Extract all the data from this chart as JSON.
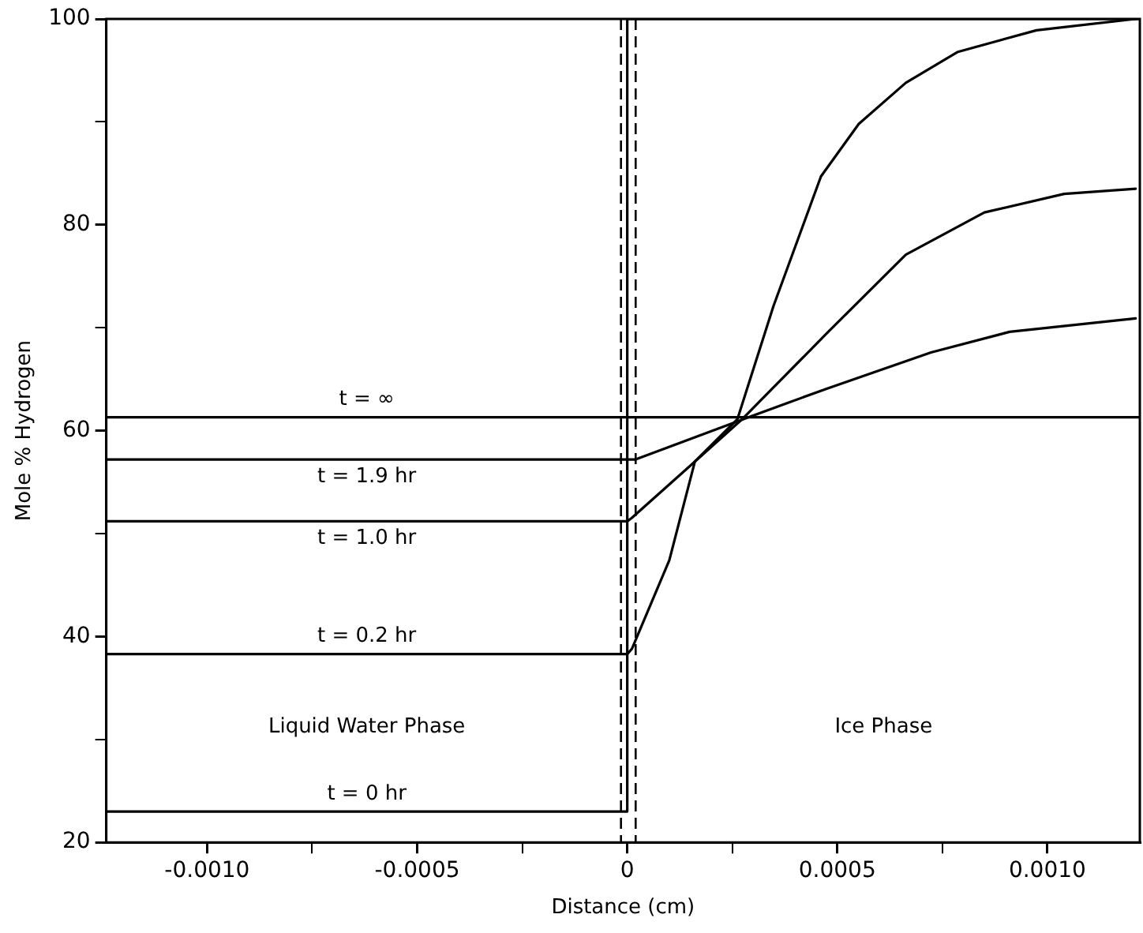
{
  "chart_data": {
    "type": "line",
    "xlabel": "Distance (cm)",
    "ylabel": "Mole % Hydrogen",
    "xlim": [
      -0.00124,
      0.00122
    ],
    "ylim": [
      20,
      100
    ],
    "xticks": [
      {
        "value": -0.001,
        "label": "-0.0010"
      },
      {
        "value": -0.00075,
        "label": null
      },
      {
        "value": -0.0005,
        "label": "-0.0005"
      },
      {
        "value": -0.00025,
        "label": null
      },
      {
        "value": 0,
        "label": "0"
      },
      {
        "value": 0.00025,
        "label": null
      },
      {
        "value": 0.0005,
        "label": "0.0005"
      },
      {
        "value": 0.00075,
        "label": null
      },
      {
        "value": 0.001,
        "label": "0.0010"
      }
    ],
    "yticks": [
      20,
      {
        "value": 30,
        "label": null
      },
      40,
      {
        "value": 50,
        "label": null
      },
      60,
      {
        "value": 70,
        "label": null
      },
      80,
      {
        "value": 90,
        "label": null
      },
      100
    ],
    "grid": false,
    "legend": false,
    "marker": "none",
    "line_style": "solid",
    "series": [
      {
        "name": "t = 0 hr",
        "color": "#000000",
        "x": [
          -0.00124,
          0,
          0,
          0.00122
        ],
        "values": [
          23,
          23,
          100,
          100
        ]
      },
      {
        "name": "t = 0.2 hr",
        "color": "#000000",
        "x": [
          -0.00124,
          0,
          1.1e-05,
          0.0001,
          0.000161,
          0.000262,
          0.000348,
          0.000461,
          0.000551,
          0.000663,
          0.000787,
          0.000974,
          0.00121
        ],
        "values": [
          38.3,
          38.3,
          38.8,
          47.4,
          57,
          61.1,
          72.1,
          84.7,
          89.8,
          93.8,
          96.8,
          98.9,
          100
        ]
      },
      {
        "name": "t = 1.0 hr",
        "color": "#000000",
        "x": [
          -0.00124,
          0,
          1e-05,
          0.000161,
          0.000273,
          0.000476,
          0.000663,
          0.00085,
          0.00104,
          0.00121
        ],
        "values": [
          51.2,
          51.2,
          51.5,
          57,
          61.1,
          69.5,
          77.1,
          81.2,
          83,
          83.5
        ]
      },
      {
        "name": "t = 1.9 hr",
        "color": "#000000",
        "x": [
          -0.00124,
          2e-05,
          0.000288,
          0.000476,
          0.000723,
          0.00091,
          0.00121
        ],
        "values": [
          57.2,
          57.2,
          61.3,
          64.1,
          67.6,
          69.6,
          70.9
        ]
      },
      {
        "name": "t = ∞",
        "color": "#000000",
        "x": [
          -0.00124,
          0.00122
        ],
        "values": [
          61.3,
          61.3
        ]
      }
    ],
    "ref_lines": [
      {
        "axis": "x",
        "value": -1.5e-05,
        "color": "#000000",
        "line_style": "dashed"
      },
      {
        "axis": "x",
        "value": 2e-05,
        "color": "#000000",
        "line_style": "dashed"
      }
    ],
    "annotations": [
      "Liquid Water Phase",
      "Ice Phase"
    ]
  }
}
